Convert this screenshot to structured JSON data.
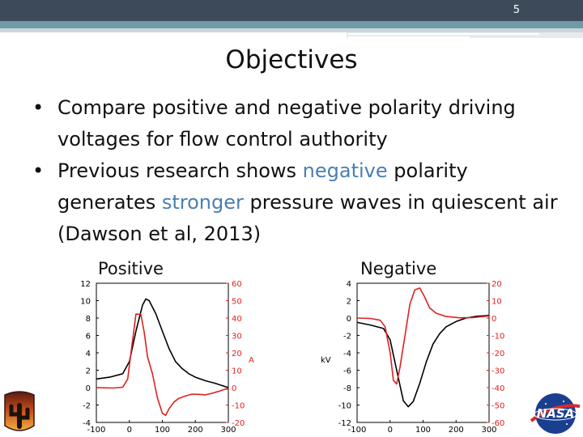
{
  "slide": {
    "number": "5",
    "title": "Objectives",
    "bullets": [
      {
        "parts": [
          "Compare positive and negative polarity driving voltages for flow control authority"
        ]
      },
      {
        "parts": [
          "Previous research shows ",
          "negative",
          " polarity generates ",
          "stronger",
          " pressure waves in quiescent air (Dawson et al, 2013)"
        ]
      }
    ],
    "colors": {
      "highlight": "#4a7fb1",
      "voltage": "#000000",
      "current": "#e02020",
      "header": "#3d4a5a",
      "accent": "#6f9aa6"
    }
  },
  "chart_data": [
    {
      "type": "line",
      "title": "Positive",
      "x_ticks": [
        "-100",
        "0",
        "100",
        "200",
        "300"
      ],
      "y_left_ticks": [
        "-4",
        "-2",
        "0",
        "2",
        "4",
        "6",
        "8",
        "10",
        "12"
      ],
      "y_right_ticks": [
        "-20",
        "-10",
        "0",
        "10",
        "20",
        "30",
        "40",
        "50",
        "60"
      ],
      "y_right_label": "A",
      "xlim": [
        -100,
        300
      ],
      "ylim_left": [
        -4,
        12
      ],
      "ylim_right": [
        -20,
        60
      ],
      "series": [
        {
          "axis": "left",
          "x": [
            -100,
            -60,
            -20,
            0,
            20,
            40,
            50,
            60,
            80,
            100,
            120,
            140,
            160,
            180,
            200,
            230,
            260,
            300
          ],
          "y": [
            1.0,
            1.2,
            1.6,
            3.0,
            6.5,
            9.5,
            10.2,
            10.0,
            8.5,
            6.5,
            4.5,
            3.0,
            2.2,
            1.6,
            1.2,
            0.8,
            0.5,
            0.0
          ]
        },
        {
          "axis": "right",
          "x": [
            -100,
            -50,
            -20,
            -5,
            5,
            20,
            35,
            45,
            55,
            70,
            85,
            100,
            110,
            120,
            135,
            150,
            170,
            190,
            210,
            230,
            250,
            270,
            290,
            300
          ],
          "y": [
            0,
            0,
            0.5,
            5,
            20,
            42,
            42,
            32,
            18,
            8,
            -6,
            -15,
            -16,
            -12,
            -8,
            -6,
            -5,
            -4,
            -4,
            -4,
            -3,
            -2,
            -1,
            -1
          ]
        }
      ]
    },
    {
      "type": "line",
      "title": "Negative",
      "x_ticks": [
        "-100",
        "0",
        "100",
        "200",
        "300"
      ],
      "y_left_ticks": [
        "-12",
        "-10",
        "-8",
        "-6",
        "-4",
        "-2",
        "0",
        "2",
        "4"
      ],
      "y_right_ticks": [
        "-60",
        "-50",
        "-40",
        "-30",
        "-20",
        "-10",
        "0",
        "10",
        "20"
      ],
      "y_left_label": "kV",
      "xlim": [
        -100,
        300
      ],
      "ylim_left": [
        -12,
        4
      ],
      "ylim_right": [
        -60,
        20
      ],
      "series": [
        {
          "axis": "left",
          "x": [
            -100,
            -60,
            -20,
            0,
            20,
            40,
            55,
            70,
            90,
            110,
            130,
            150,
            170,
            200,
            230,
            260,
            300
          ],
          "y": [
            -0.5,
            -0.8,
            -1.2,
            -2.5,
            -6.0,
            -9.5,
            -10.2,
            -9.6,
            -7.5,
            -5.0,
            -3.0,
            -1.8,
            -1.0,
            -0.4,
            0.0,
            0.2,
            0.3
          ]
        },
        {
          "axis": "right",
          "x": [
            -100,
            -60,
            -30,
            -15,
            0,
            10,
            20,
            30,
            45,
            60,
            75,
            90,
            105,
            120,
            140,
            170,
            210,
            250,
            300
          ],
          "y": [
            0,
            0,
            -1,
            -5,
            -20,
            -36,
            -38,
            -28,
            -10,
            8,
            16,
            17,
            12,
            6,
            3,
            1,
            0,
            0,
            1
          ]
        }
      ]
    }
  ]
}
